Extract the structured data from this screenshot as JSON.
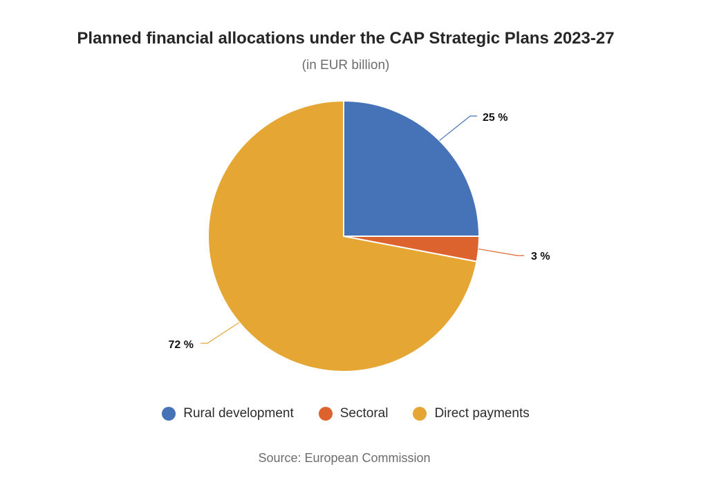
{
  "chart_data": {
    "type": "pie",
    "title": "Planned financial allocations under the CAP Strategic Plans 2023-27",
    "subtitle": "(in EUR billion)",
    "source": "Source: European Commission",
    "legend_position": "bottom",
    "slices": [
      {
        "name": "Rural development",
        "value": 25,
        "label": "25 %",
        "color": "#4672b8"
      },
      {
        "name": "Sectoral",
        "value": 3,
        "label": "3 %",
        "color": "#dc632d"
      },
      {
        "name": "Direct payments",
        "value": 72,
        "label": "72 %",
        "color": "#e5a633"
      }
    ]
  }
}
